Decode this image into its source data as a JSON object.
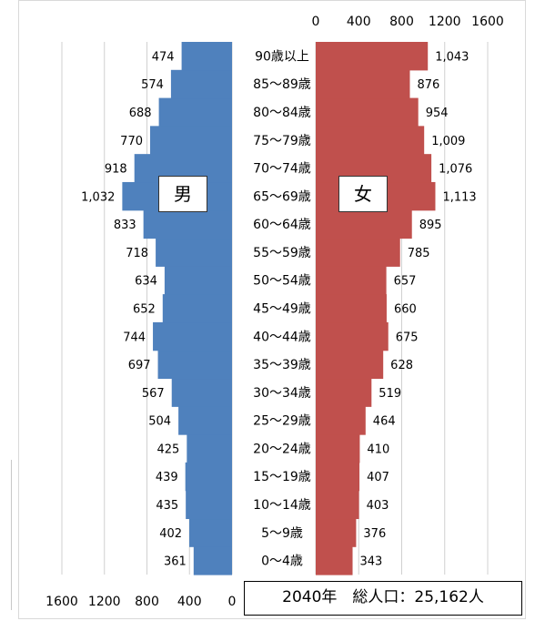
{
  "chart_data": {
    "type": "bar",
    "orientation": "horizontal-population-pyramid",
    "categories": [
      "0～4歳",
      "5～9歳",
      "10～14歳",
      "15～19歳",
      "20～24歳",
      "25～29歳",
      "30～34歳",
      "35～39歳",
      "40～44歳",
      "45～49歳",
      "50～54歳",
      "55～59歳",
      "60～64歳",
      "65～69歳",
      "70～74歳",
      "75～79歳",
      "80～84歳",
      "85～89歳",
      "90歳以上"
    ],
    "series": [
      {
        "name": "男",
        "side": "left",
        "color": "#4f81bd",
        "values": [
          361,
          402,
          435,
          439,
          425,
          504,
          567,
          697,
          744,
          652,
          634,
          718,
          833,
          1032,
          918,
          770,
          688,
          574,
          474
        ],
        "labels": [
          "361",
          "402",
          "435",
          "439",
          "425",
          "504",
          "567",
          "697",
          "744",
          "652",
          "634",
          "718",
          "833",
          "1,032",
          "918",
          "770",
          "688",
          "574",
          "474"
        ]
      },
      {
        "name": "女",
        "side": "right",
        "color": "#c0504d",
        "values": [
          343,
          376,
          403,
          407,
          410,
          464,
          519,
          628,
          675,
          660,
          657,
          785,
          895,
          1113,
          1076,
          1009,
          954,
          876,
          1043
        ],
        "labels": [
          "343",
          "376",
          "403",
          "407",
          "410",
          "464",
          "519",
          "628",
          "675",
          "660",
          "657",
          "785",
          "895",
          "1,113",
          "1,076",
          "1,009",
          "954",
          "876",
          "1,043"
        ]
      }
    ],
    "left_axis_ticks": [
      "1600",
      "1200",
      "800",
      "400",
      "0"
    ],
    "right_axis_ticks": [
      "0",
      "400",
      "800",
      "1200",
      "1600"
    ],
    "xlim": [
      0,
      1600
    ],
    "grid": true,
    "caption": "2040年　総人口：25,162人"
  }
}
